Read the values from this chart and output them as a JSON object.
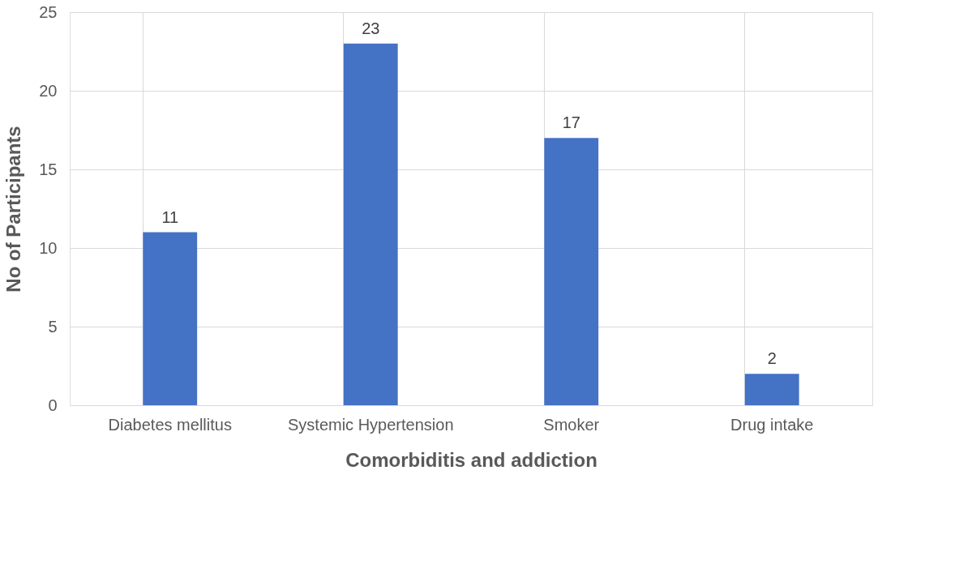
{
  "chart_data": {
    "type": "bar",
    "xlabel": "Comorbiditis and addiction",
    "ylabel": "No of Participants",
    "categories": [
      "Diabetes mellitus",
      "Systemic Hypertension",
      "Smoker",
      "Drug intake"
    ],
    "values": [
      11,
      23,
      17,
      2
    ],
    "color": "#4472c4",
    "ylim": [
      0,
      25
    ],
    "yticks": [
      0,
      5,
      10,
      15,
      20,
      25
    ],
    "grid": true,
    "data_labels": true
  }
}
